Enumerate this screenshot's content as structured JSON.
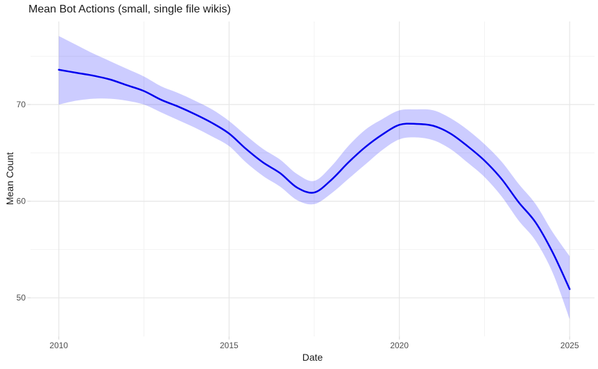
{
  "title": "Mean Bot Actions (small, single file wikis)",
  "chart_data": {
    "type": "line",
    "title": "Mean Bot Actions (small, single file wikis)",
    "xlabel": "Date",
    "ylabel": "Mean Count",
    "x_ticks": [
      2010,
      2015,
      2020,
      2025
    ],
    "x_tick_labels": [
      "2010",
      "2015",
      "2020",
      "2025"
    ],
    "x_minor_ticks": [
      2012.5,
      2017.5,
      2022.5
    ],
    "y_ticks": [
      50,
      60,
      70
    ],
    "y_tick_labels": [
      "50",
      "60",
      "70"
    ],
    "y_minor_ticks": [
      55,
      65,
      75
    ],
    "xlim": [
      2009.17,
      2025.73
    ],
    "ylim": [
      46.0,
      78.6
    ],
    "grid": "major+minor",
    "legend": false,
    "x": [
      2010,
      2010.5,
      2011,
      2011.5,
      2012,
      2012.5,
      2013,
      2013.5,
      2014,
      2014.5,
      2015,
      2015.5,
      2016,
      2016.5,
      2017,
      2017.5,
      2018,
      2018.5,
      2019,
      2019.5,
      2020,
      2020.5,
      2021,
      2021.5,
      2022,
      2022.5,
      2023,
      2023.5,
      2024,
      2024.5,
      2025
    ],
    "series": [
      {
        "name": "mean_count_smoothed",
        "values": [
          73.6,
          73.3,
          73.0,
          72.6,
          72.0,
          71.4,
          70.5,
          69.8,
          69.0,
          68.1,
          67.0,
          65.4,
          64.0,
          62.9,
          61.4,
          60.9,
          62.2,
          64.0,
          65.6,
          66.9,
          67.9,
          68.0,
          67.8,
          67.0,
          65.7,
          64.2,
          62.3,
          59.9,
          57.8,
          54.7,
          50.9
        ]
      },
      {
        "name": "ci_lower",
        "values": [
          70.0,
          70.4,
          70.6,
          70.6,
          70.4,
          70.0,
          69.2,
          68.4,
          67.6,
          66.7,
          65.7,
          64.0,
          62.6,
          61.5,
          60.1,
          59.7,
          60.8,
          62.3,
          63.8,
          65.3,
          66.4,
          66.6,
          66.3,
          65.4,
          64.0,
          62.5,
          60.5,
          58.0,
          55.9,
          52.6,
          47.8
        ]
      },
      {
        "name": "ci_upper",
        "values": [
          77.1,
          76.2,
          75.3,
          74.5,
          73.7,
          72.9,
          71.9,
          71.2,
          70.4,
          69.5,
          68.3,
          66.8,
          65.4,
          64.3,
          62.8,
          62.1,
          63.6,
          65.7,
          67.4,
          68.5,
          69.4,
          69.5,
          69.4,
          68.6,
          67.4,
          65.9,
          64.1,
          61.8,
          59.7,
          56.8,
          54.3
        ]
      }
    ],
    "colors": {
      "line": "#0000EE",
      "band_fill": "#0000FF",
      "band_opacity": "0.2",
      "grid_major": "#E6E6E6",
      "grid_minor": "#F2F2F2",
      "tick_mark": "#D9D9D9",
      "tick_label": "#4D4D4D",
      "text": "#1A1A1A",
      "background": "#FFFFFF"
    }
  }
}
